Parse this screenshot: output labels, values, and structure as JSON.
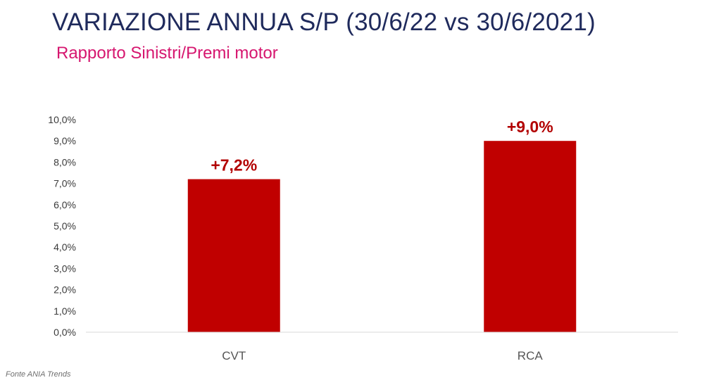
{
  "header": {
    "title_main": "VARIAZIONE ANNUA S/P",
    "title_period": "(30/6/22 vs 30/6/2021)",
    "subtitle": "Rapporto Sinistri/Premi motor"
  },
  "footer": {
    "source": "Fonte ANIA Trends"
  },
  "chart_data": {
    "type": "bar",
    "title": "VARIAZIONE ANNUA S/P (30/6/22 vs 30/6/2021)",
    "subtitle": "Rapporto Sinistri/Premi motor",
    "categories": [
      "CVT",
      "RCA"
    ],
    "values": [
      7.2,
      9.0
    ],
    "data_labels": [
      "+7,2%",
      "+9,0%"
    ],
    "ylim": [
      0,
      10
    ],
    "yticks": [
      0,
      1,
      2,
      3,
      4,
      5,
      6,
      7,
      8,
      9,
      10
    ],
    "ytick_labels": [
      "0,0%",
      "1,0%",
      "2,0%",
      "3,0%",
      "4,0%",
      "5,0%",
      "6,0%",
      "7,0%",
      "8,0%",
      "9,0%",
      "10,0%"
    ],
    "xlabel": "",
    "ylabel": "",
    "grid": false,
    "bar_color": "#c00000",
    "label_color": "#b20000"
  }
}
